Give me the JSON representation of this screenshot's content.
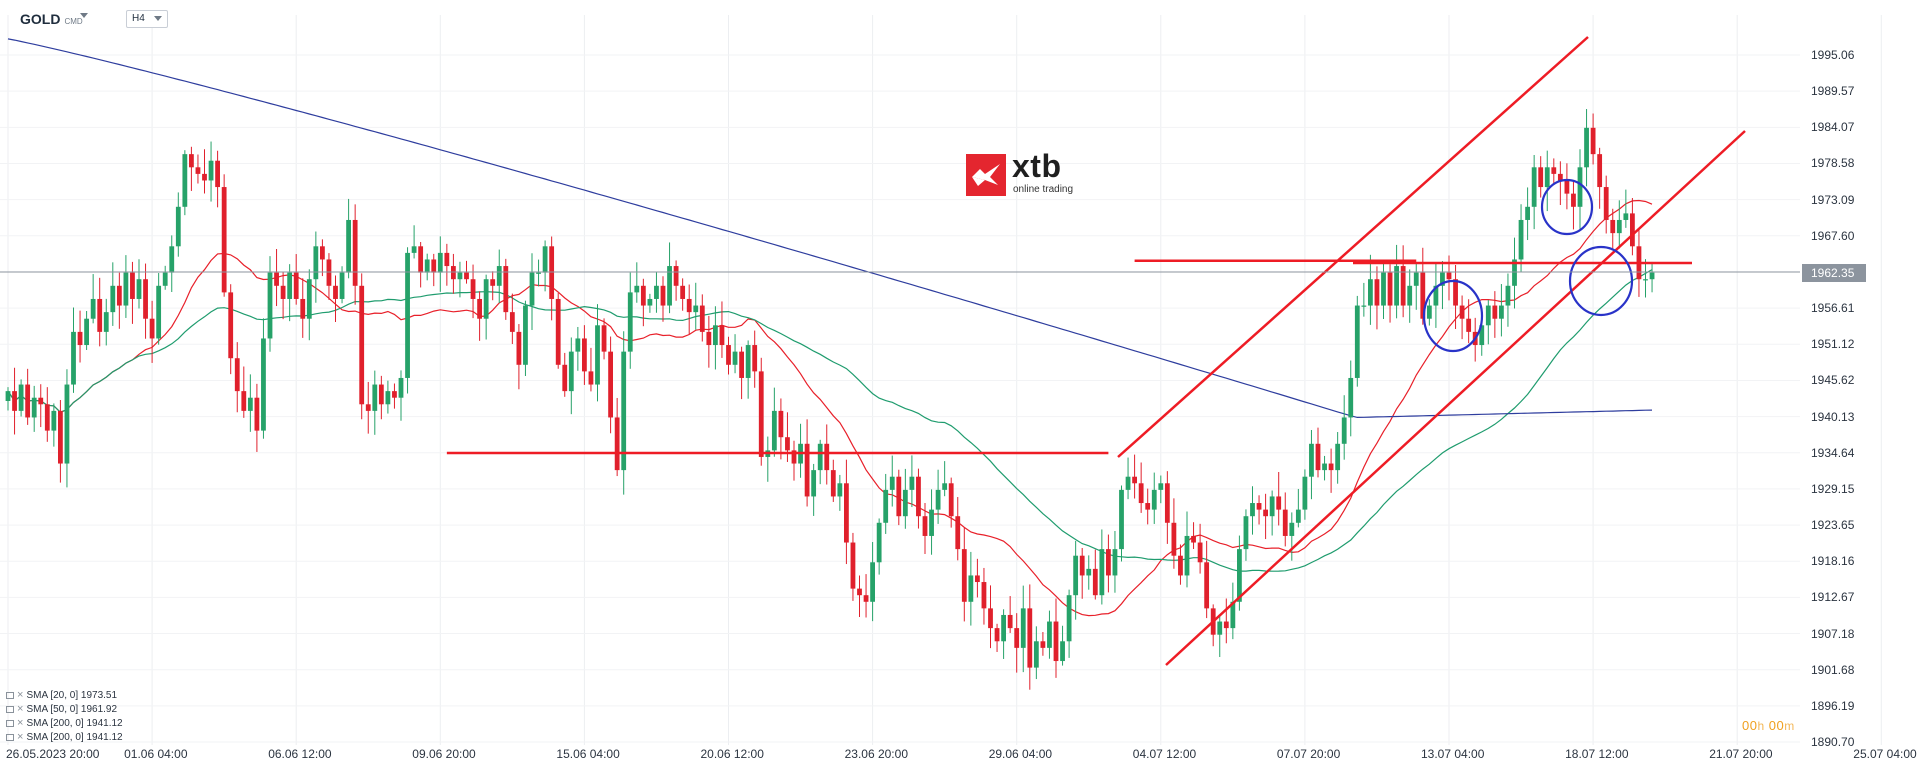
{
  "header": {
    "symbol": "GOLD",
    "symbol_suffix": "CMD",
    "timeframe": "H4"
  },
  "logo": {
    "name": "xtb",
    "tagline": "online trading"
  },
  "current_price": "1962.35",
  "timer": {
    "hours": "00",
    "h_unit": "h",
    "minutes": "00",
    "m_unit": "m"
  },
  "indicators": [
    {
      "label": "SMA [20, 0] 1973.51",
      "color": "#e8202a"
    },
    {
      "label": "SMA [50, 0] 1961.92",
      "color": "#1f9c6e"
    },
    {
      "label": "SMA [200, 0] 1941.12",
      "color": "#2e3d9e"
    },
    {
      "label": "SMA [200, 0] 1941.12",
      "color": "#2e3d9e"
    }
  ],
  "colors": {
    "bull": "#26a269",
    "bear": "#e0202c",
    "drawing": "#ee1c25",
    "circle": "#2933c8",
    "sma20": "#e8202a",
    "sma50": "#1f9c6e",
    "sma200": "#2e3d9e"
  },
  "chart_data": {
    "type": "candlestick",
    "symbol": "GOLD",
    "timeframe": "H4",
    "ylim": [
      1890.7,
      2000.7
    ],
    "xlim": [
      0,
      312
    ],
    "y_ticks": [
      "1995.06",
      "1989.57",
      "1984.07",
      "1978.58",
      "1973.09",
      "1967.60",
      "1962.11",
      "1956.61",
      "1951.12",
      "1945.62",
      "1940.13",
      "1934.64",
      "1929.15",
      "1923.65",
      "1918.16",
      "1912.67",
      "1907.18",
      "1901.68",
      "1896.19",
      "1890.70"
    ],
    "x_ticks": [
      {
        "label": "26.05.2023  20:00",
        "bar": 0
      },
      {
        "label": "01.06  04:00",
        "bar": 22
      },
      {
        "label": "06.06  12:00",
        "bar": 44
      },
      {
        "label": "09.06  20:00",
        "bar": 66
      },
      {
        "label": "15.06  04:00",
        "bar": 88
      },
      {
        "label": "20.06  12:00",
        "bar": 110
      },
      {
        "label": "23.06  20:00",
        "bar": 132
      },
      {
        "label": "29.06  04:00",
        "bar": 154
      },
      {
        "label": "04.07  12:00",
        "bar": 176
      },
      {
        "label": "07.07  20:00",
        "bar": 198
      },
      {
        "label": "13.07  04:00",
        "bar": 220
      },
      {
        "label": "18.07  12:00",
        "bar": 242
      },
      {
        "label": "21.07  20:00",
        "bar": 264
      },
      {
        "label": "25.07  04:00",
        "bar": 286
      }
    ],
    "candle_closes": [
      1944,
      1941,
      1945,
      1940,
      1943,
      1942,
      1938,
      1941,
      1933,
      1945,
      1953,
      1951,
      1955,
      1958,
      1953,
      1956,
      1960,
      1957,
      1962,
      1958,
      1961,
      1955,
      1952,
      1960,
      1962,
      1966,
      1972,
      1980,
      1978,
      1977,
      1976,
      1979,
      1975,
      1959,
      1949,
      1944,
      1941,
      1943,
      1938,
      1952,
      1962,
      1960,
      1958,
      1962,
      1958,
      1955,
      1961,
      1966,
      1964,
      1960,
      1958,
      1962,
      1970,
      1960,
      1942,
      1941,
      1945,
      1942,
      1944,
      1943,
      1946,
      1965,
      1966,
      1962,
      1964,
      1962,
      1965,
      1963,
      1961,
      1962,
      1961,
      1958,
      1955,
      1961,
      1960,
      1963,
      1956,
      1953,
      1948,
      1957,
      1962,
      1962,
      1966,
      1958,
      1948,
      1944,
      1950,
      1952,
      1947,
      1945,
      1954,
      1950,
      1940,
      1932,
      1950,
      1959,
      1960,
      1957,
      1958,
      1960,
      1957,
      1963,
      1960,
      1958,
      1956,
      1957,
      1953,
      1951,
      1954,
      1951,
      1948,
      1950,
      1946,
      1951,
      1947,
      1934,
      1935,
      1941,
      1937,
      1935,
      1933,
      1936,
      1928,
      1932,
      1936,
      1932,
      1928,
      1930,
      1921,
      1914,
      1913,
      1912,
      1918,
      1924,
      1929,
      1931,
      1925,
      1929,
      1931,
      1925,
      1922,
      1926,
      1929,
      1930,
      1925,
      1920,
      1912,
      1916,
      1915,
      1911,
      1908,
      1906,
      1910,
      1908,
      1905,
      1911,
      1902,
      1906,
      1905,
      1909,
      1903,
      1906,
      1913,
      1919,
      1916,
      1917,
      1913,
      1920,
      1916,
      1920,
      1929,
      1931,
      1930,
      1927,
      1926,
      1929,
      1930,
      1924,
      1919,
      1916,
      1922,
      1921,
      1918,
      1911,
      1907,
      1909,
      1908,
      1912,
      1920,
      1925,
      1927,
      1926,
      1925,
      1928,
      1926,
      1922,
      1924,
      1926,
      1931,
      1936,
      1932,
      1933,
      1932,
      1936,
      1940,
      1946,
      1957,
      1957,
      1961,
      1957,
      1962,
      1957,
      1963,
      1957,
      1960,
      1962,
      1955,
      1957,
      1960,
      1962,
      1961,
      1957,
      1955,
      1953,
      1951,
      1954,
      1957,
      1955,
      1957,
      1960,
      1964,
      1970,
      1972,
      1978,
      1975,
      1978,
      1977,
      1976,
      1974,
      1972,
      1978,
      1984,
      1980,
      1975,
      1970,
      1968,
      1970,
      1971,
      1966,
      1961,
      1961,
      1962
    ],
    "sma_20_final": 1973.51,
    "sma_50_final": 1961.92,
    "sma_200_final": 1941.12,
    "horizontal_levels": [
      1934.6,
      1963.8
    ],
    "channel": "ascending",
    "legend_position": "bottom-left",
    "grid": true
  }
}
